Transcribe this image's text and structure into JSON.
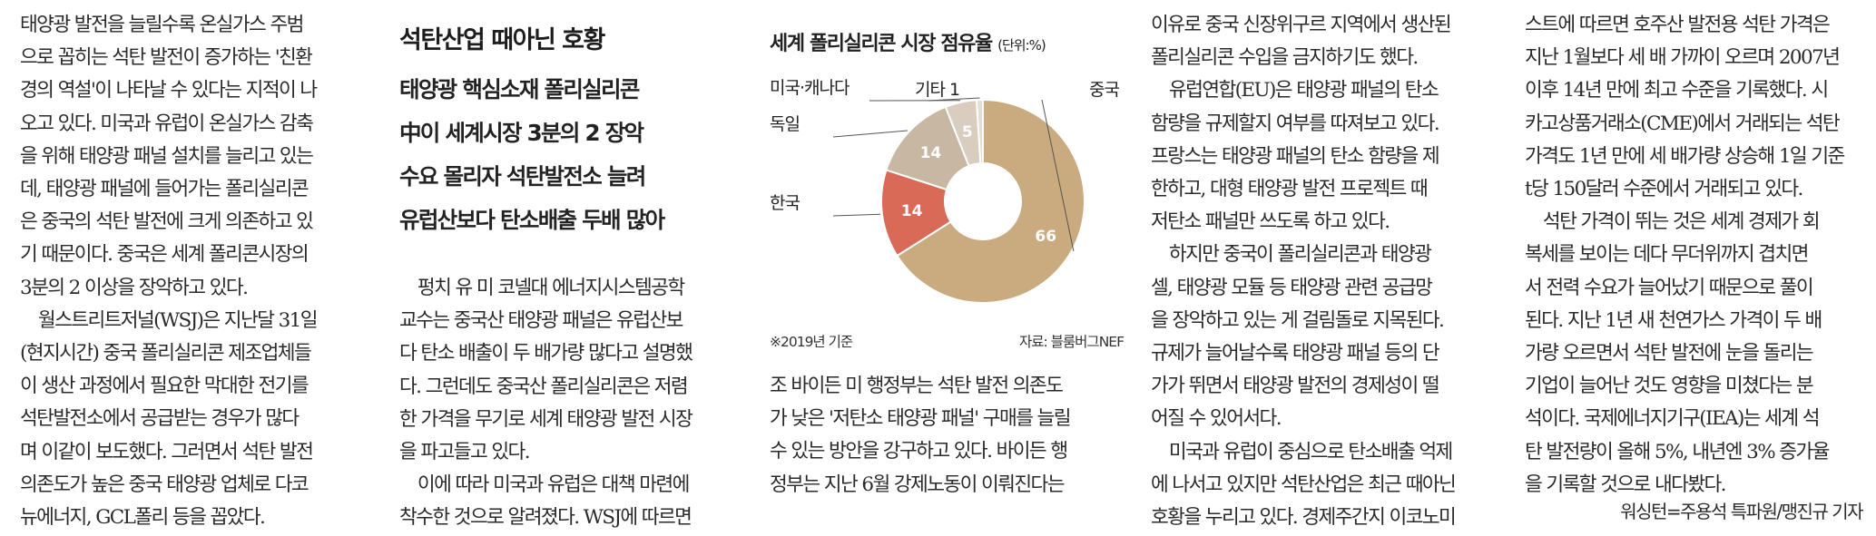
{
  "article": {
    "col1": [
      "태양광 발전을 늘릴수록 온실가스 주범",
      "으로 꼽히는 석탄 발전이 증가하는 '친환",
      "경의 역설'이 나타날 수 있다는 지적이 나",
      "오고 있다. 미국과 유럽이 온실가스 감축",
      "을 위해 태양광 패널 설치를 늘리고 있는",
      "데, 태양광 패널에 들어가는 폴리실리콘",
      "은 중국의 석탄 발전에 크게 의존하고 있",
      "기 때문이다. 중국은 세계 폴리콘시장의",
      "3분의 2 이상을 장악하고 있다.",
      "　월스트리트저널(WSJ)은 지난달 31일",
      "(현지시간) 중국 폴리실리콘 제조업체들",
      "이 생산 과정에서 필요한 막대한 전기를",
      "석탄발전소에서 공급받는 경우가 많다",
      "며 이같이 보도했다. 그러면서 석탄 발전",
      "의존도가 높은 중국 태양광 업체로 다코",
      "뉴에너지, GCL폴리 등을 꼽았다."
    ],
    "headline": "석탄산업 때아닌 호황",
    "subheads": [
      "태양광 핵심소재 폴리실리콘",
      "中이 세계시장 3분의 2 장악",
      "수요 몰리자 석탄발전소 늘려",
      "유럽산보다 탄소배출 두배 많아"
    ],
    "col2_body": [
      "　펑치 유 미 코넬대 에너지시스템공학",
      "교수는 중국산 태양광 패널은 유럽산보",
      "다 탄소 배출이 두 배가량 많다고 설명했",
      "다. 그런데도 중국산 폴리실리콘은 저렴",
      "한 가격을 무기로 세계 태양광 발전 시장",
      "을 파고들고 있다.",
      "　이에 따라 미국과 유럽은 대책 마련에",
      "착수한 것으로 알려졌다. WSJ에 따르면"
    ],
    "col3_body": [
      "조 바이든 미 행정부는 석탄 발전 의존도",
      "가 낮은 '저탄소 태양광 패널' 구매를 늘릴",
      "수 있는 방안을 강구하고 있다. 바이든 행",
      "정부는 지난 6월 강제노동이 이뤄진다는"
    ],
    "col4": [
      "이유로 중국 신장위구르 지역에서 생산된",
      "폴리실리콘 수입을 금지하기도 했다.",
      "　유럽연합(EU)은 태양광 패널의 탄소",
      "함량을 규제할지 여부를 따져보고 있다.",
      "프랑스는 태양광 패널의 탄소 함량을 제",
      "한하고, 대형 태양광 발전 프로젝트 때",
      "저탄소 패널만 쓰도록 하고 있다.",
      "　하지만 중국이 폴리실리콘과 태양광",
      "셀, 태양광 모듈 등 태양광 관련 공급망",
      "을 장악하고 있는 게 걸림돌로 지목된다.",
      "규제가 늘어날수록 태양광 패널 등의 단",
      "가가 뛰면서 태양광 발전의 경제성이 떨",
      "어질 수 있어서다.",
      "　미국과 유럽이 중심으로 탄소배출 억제",
      "에 나서고 있지만 석탄산업은 최근 때아닌",
      "호황을 누리고 있다. 경제주간지 이코노미"
    ],
    "col5": [
      "스트에 따르면 호주산 발전용 석탄 가격은",
      "지난 1월보다 세 배 가까이 오르며 2007년",
      "이후 14년 만에 최고 수준을 기록했다. 시",
      "카고상품거래소(CME)에서 거래되는 석탄",
      "가격도 1년 만에 세 배가량 상승해 1일 기준",
      "t당 150달러 수준에서 거래되고 있다.",
      "　석탄 가격이 뛰는 것은 세계 경제가 회",
      "복세를 보이는 데다 무더위까지 겹치면",
      "서 전력 수요가 늘어났기 때문으로 풀이",
      "된다. 지난 1년 새 천연가스 가격이 두 배",
      "가량 오르면서 석탄 발전에 눈을 돌리는",
      "기업이 늘어난 것도 영향을 미쳤다는 분",
      "석이다. 국제에너지기구(IEA)는 세계 석",
      "탄 발전량이 올해 5%, 내년엔 3% 증가율",
      "을 기록할 것으로 내다봤다."
    ],
    "byline": "워싱턴=주용석 특파원/맹진규 기자"
  },
  "colors": {
    "text": "#2a2a2a",
    "china": "#c9ab7f",
    "korea": "#d96a57",
    "germany": "#c8b8a3",
    "us_canada": "#d8cdbf",
    "other": "#e6ddd2"
  },
  "chart_data": {
    "type": "pie",
    "title": "세계 폴리실리콘 시장 점유율",
    "unit": "(단위:%)",
    "note": "※2019년 기준",
    "source": "자료: 블룸버그NEF",
    "slices": [
      {
        "label": "중국",
        "value": 66,
        "value_label": "66"
      },
      {
        "label": "한국",
        "value": 14,
        "value_label": "14"
      },
      {
        "label": "독일",
        "value": 14,
        "value_label": "14"
      },
      {
        "label": "미국·캐나다",
        "value": 5,
        "value_label": "5"
      },
      {
        "label": "기타",
        "value": 1,
        "value_label": "1"
      }
    ]
  }
}
